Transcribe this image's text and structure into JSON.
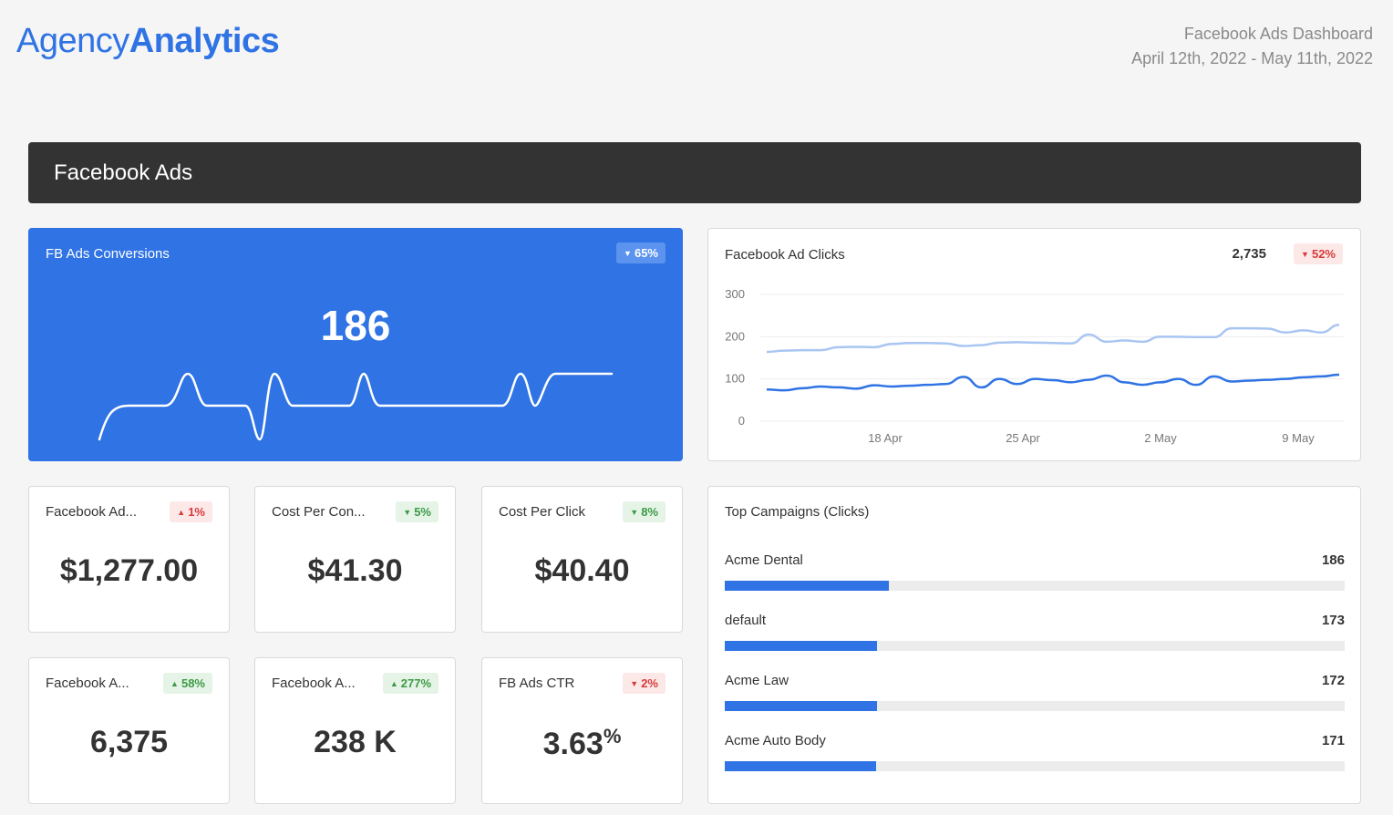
{
  "logo": {
    "part1": "Agency",
    "part2": "Analytics"
  },
  "report": {
    "name": "Facebook Ads Dashboard",
    "date_range": "April 12th, 2022 - May 11th, 2022"
  },
  "section": {
    "title": "Facebook Ads"
  },
  "conversions": {
    "title": "FB Ads Conversions",
    "value": "186",
    "change": "65%",
    "change_direction": "down"
  },
  "clicks": {
    "title": "Facebook Ad Clicks",
    "total": "2,735",
    "change": "52%",
    "change_direction": "down"
  },
  "chart_data": {
    "type": "line",
    "title": "Facebook Ad Clicks",
    "xlabel": "",
    "ylabel": "",
    "ylim": [
      0,
      300
    ],
    "yticks": [
      "0",
      "100",
      "200",
      "300"
    ],
    "xticks": [
      "18 Apr",
      "25 Apr",
      "2 May",
      "9 May"
    ],
    "grid": true,
    "series": [
      {
        "color": "#a9c5f2",
        "values": [
          164,
          167,
          168,
          168,
          175,
          176,
          175,
          183,
          185,
          185,
          184,
          178,
          180,
          186,
          187,
          186,
          185,
          184,
          205,
          188,
          191,
          188,
          200,
          200,
          199,
          199,
          220,
          220,
          219,
          210,
          215,
          210,
          228
        ]
      },
      {
        "color": "#2f73e4",
        "values": [
          75,
          73,
          78,
          82,
          80,
          77,
          85,
          82,
          84,
          86,
          88,
          105,
          80,
          100,
          88,
          100,
          97,
          92,
          98,
          108,
          92,
          86,
          92,
          100,
          86,
          106,
          94,
          96,
          98,
          100,
          104,
          106,
          110
        ]
      }
    ]
  },
  "kpis": [
    {
      "title": "Facebook Ad...",
      "value": "$1,277.00",
      "change": "1%",
      "dir": "up",
      "tone": "red"
    },
    {
      "title": "Cost Per Con...",
      "value": "$41.30",
      "change": "5%",
      "dir": "down",
      "tone": "green"
    },
    {
      "title": "Cost Per Click",
      "value": "$40.40",
      "change": "8%",
      "dir": "down",
      "tone": "green"
    },
    {
      "title": "Facebook A...",
      "value": "6,375",
      "change": "58%",
      "dir": "up",
      "tone": "green"
    },
    {
      "title": "Facebook A...",
      "value": "238 K",
      "change": "277%",
      "dir": "up",
      "tone": "green"
    },
    {
      "title": "FB Ads CTR",
      "value": "3.63",
      "value_suffix": "%",
      "change": "2%",
      "dir": "down",
      "tone": "red"
    }
  ],
  "campaigns": {
    "title": "Top Campaigns (Clicks)",
    "items": [
      {
        "name": "Acme Dental",
        "count": "186",
        "fill_fraction": 0.265
      },
      {
        "name": "default",
        "count": "173",
        "fill_fraction": 0.246
      },
      {
        "name": "Acme Law",
        "count": "172",
        "fill_fraction": 0.245
      },
      {
        "name": "Acme Auto Body",
        "count": "171",
        "fill_fraction": 0.244
      }
    ]
  },
  "colors": {
    "accent": "#2f73e4",
    "section_bar": "#333333",
    "light_series": "#a9c5f2"
  }
}
